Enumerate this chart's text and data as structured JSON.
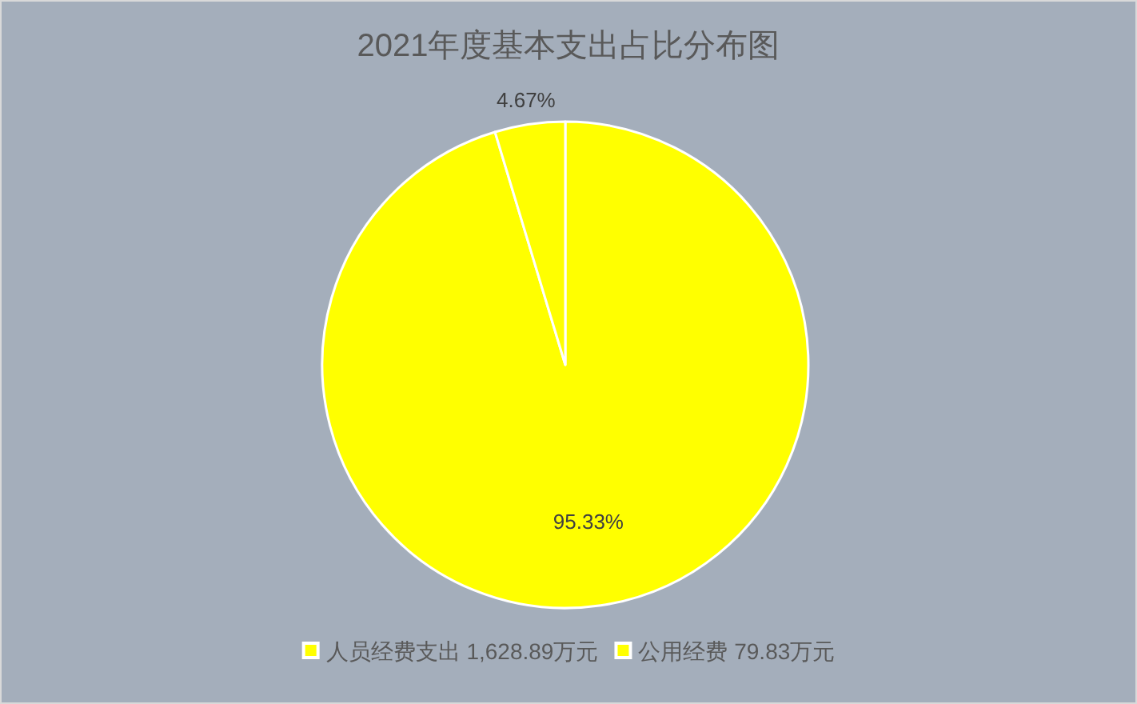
{
  "chart_data": {
    "type": "pie",
    "title": "2021年度基本支出占比分布图",
    "categories": [
      "人员经费支出 1,628.89万元",
      "公用经费 79.83万元"
    ],
    "values": [
      95.33,
      4.67
    ],
    "colors": [
      "#ffff00",
      "#ffff00"
    ],
    "value_labels": [
      "95.33%",
      "4.67%"
    ],
    "legend": "bottom"
  }
}
